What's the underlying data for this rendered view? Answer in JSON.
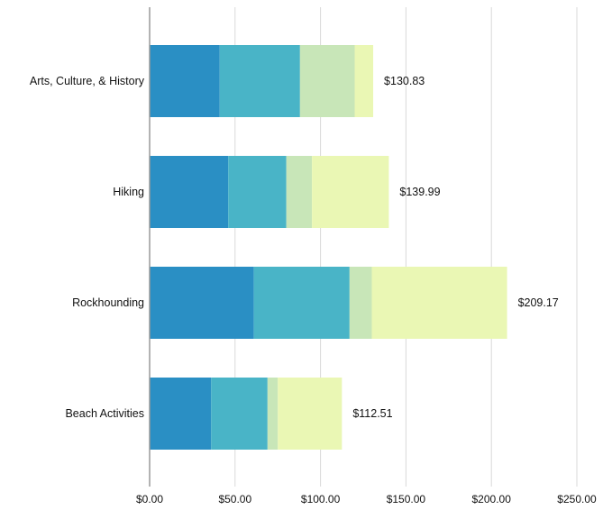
{
  "chart_data": {
    "type": "bar",
    "orientation": "horizontal",
    "stacked": true,
    "categories": [
      "Arts, Culture, & History",
      "Hiking",
      "Rockhounding",
      "Beach Activities"
    ],
    "series": [
      {
        "values": [
          41,
          46,
          61,
          36
        ],
        "color": "#2a8fc4"
      },
      {
        "values": [
          47,
          34,
          56,
          33
        ],
        "color": "#49b4c7"
      },
      {
        "values": [
          32,
          15,
          13,
          6
        ],
        "color": "#c8e6b8"
      },
      {
        "values": [
          10.83,
          44.99,
          79.17,
          37.51
        ],
        "color": "#eaf7b4"
      }
    ],
    "totals": [
      "$130.83",
      "$139.99",
      "$209.17",
      "$112.51"
    ],
    "x_ticks": [
      "$0.00",
      "$50.00",
      "$100.00",
      "$150.00",
      "$200.00",
      "$250.00"
    ],
    "x_tick_values": [
      0,
      50,
      100,
      150,
      200,
      250
    ],
    "xlim": [
      0,
      250
    ],
    "title": "",
    "xlabel": "",
    "ylabel": "",
    "grid": true,
    "legend": "none",
    "colors": {
      "grid": "#d8d8d8",
      "axis": "#9a9a9a"
    }
  }
}
